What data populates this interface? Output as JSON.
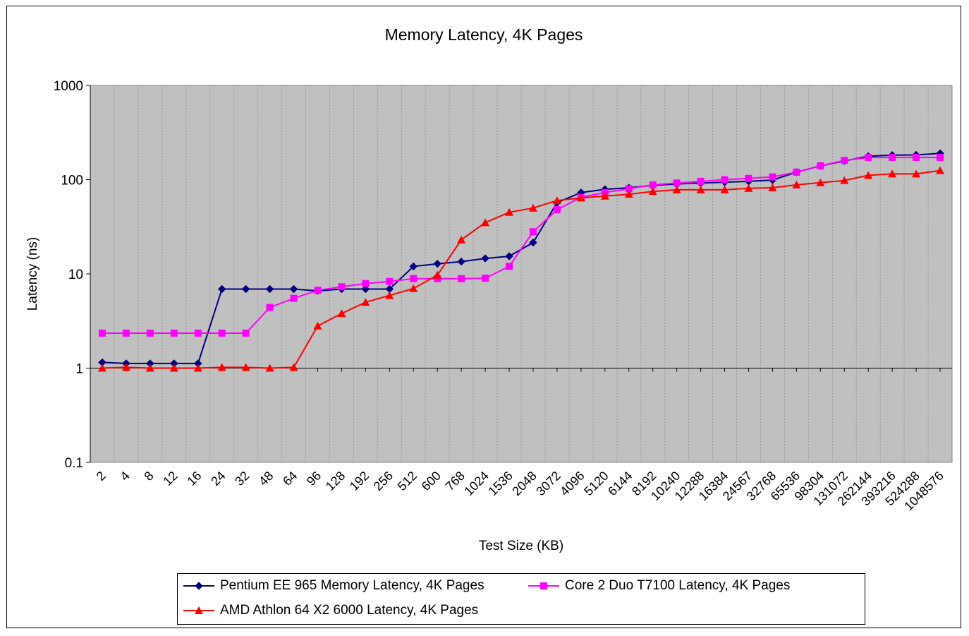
{
  "chart_data": {
    "type": "line",
    "title": "Memory Latency, 4K Pages",
    "xlabel": "Test Size (KB)",
    "ylabel": "Latency (ns)",
    "yscale": "log",
    "ylim": [
      0.1,
      1000
    ],
    "yticks": [
      "0.1",
      "1",
      "10",
      "100",
      "1000"
    ],
    "grid": "vertical",
    "legend_position": "bottom",
    "plot_background": "#C0C0C0",
    "categories": [
      "2",
      "4",
      "8",
      "12",
      "16",
      "24",
      "32",
      "48",
      "64",
      "96",
      "128",
      "192",
      "256",
      "512",
      "600",
      "768",
      "1024",
      "1536",
      "2048",
      "3072",
      "4096",
      "5120",
      "6144",
      "8192",
      "10240",
      "12288",
      "16384",
      "24567",
      "32768",
      "65536",
      "98304",
      "131072",
      "262144",
      "393216",
      "524288",
      "1048576"
    ],
    "series": [
      {
        "name": "Pentium EE 965 Memory Latency, 4K Pages",
        "color": "#000080",
        "marker": "diamond",
        "values": [
          1.15,
          1.12,
          1.12,
          1.12,
          1.12,
          6.9,
          6.9,
          6.9,
          6.9,
          6.6,
          6.9,
          6.9,
          6.9,
          12,
          12.8,
          13.5,
          14.6,
          15.4,
          21.5,
          57,
          73,
          79,
          82,
          87,
          90,
          92,
          94,
          96,
          99,
          120,
          140,
          158,
          177,
          182,
          183,
          190
        ]
      },
      {
        "name": "Core 2 Duo T7100 Latency, 4K Pages",
        "color": "#FF00FF",
        "marker": "square",
        "values": [
          2.35,
          2.35,
          2.35,
          2.35,
          2.35,
          2.35,
          2.35,
          4.4,
          5.5,
          6.7,
          7.3,
          7.9,
          8.3,
          8.9,
          8.9,
          8.9,
          9.0,
          12,
          28,
          48,
          65,
          73,
          80,
          88,
          92,
          96,
          100,
          103,
          107,
          120,
          140,
          160,
          172,
          172,
          172,
          172
        ]
      },
      {
        "name": "AMD Athlon 64 X2 6000 Latency, 4K Pages",
        "color": "#FF0000",
        "marker": "triangle",
        "values": [
          1.0,
          1.02,
          1.0,
          1.0,
          1.0,
          1.02,
          1.02,
          1.0,
          1.02,
          2.8,
          3.8,
          5.0,
          5.9,
          7.0,
          9.7,
          23,
          35,
          45,
          50,
          60,
          64,
          67,
          70,
          75,
          78,
          78,
          78,
          81,
          82,
          88,
          93,
          98,
          111,
          115,
          115,
          125
        ]
      }
    ]
  }
}
